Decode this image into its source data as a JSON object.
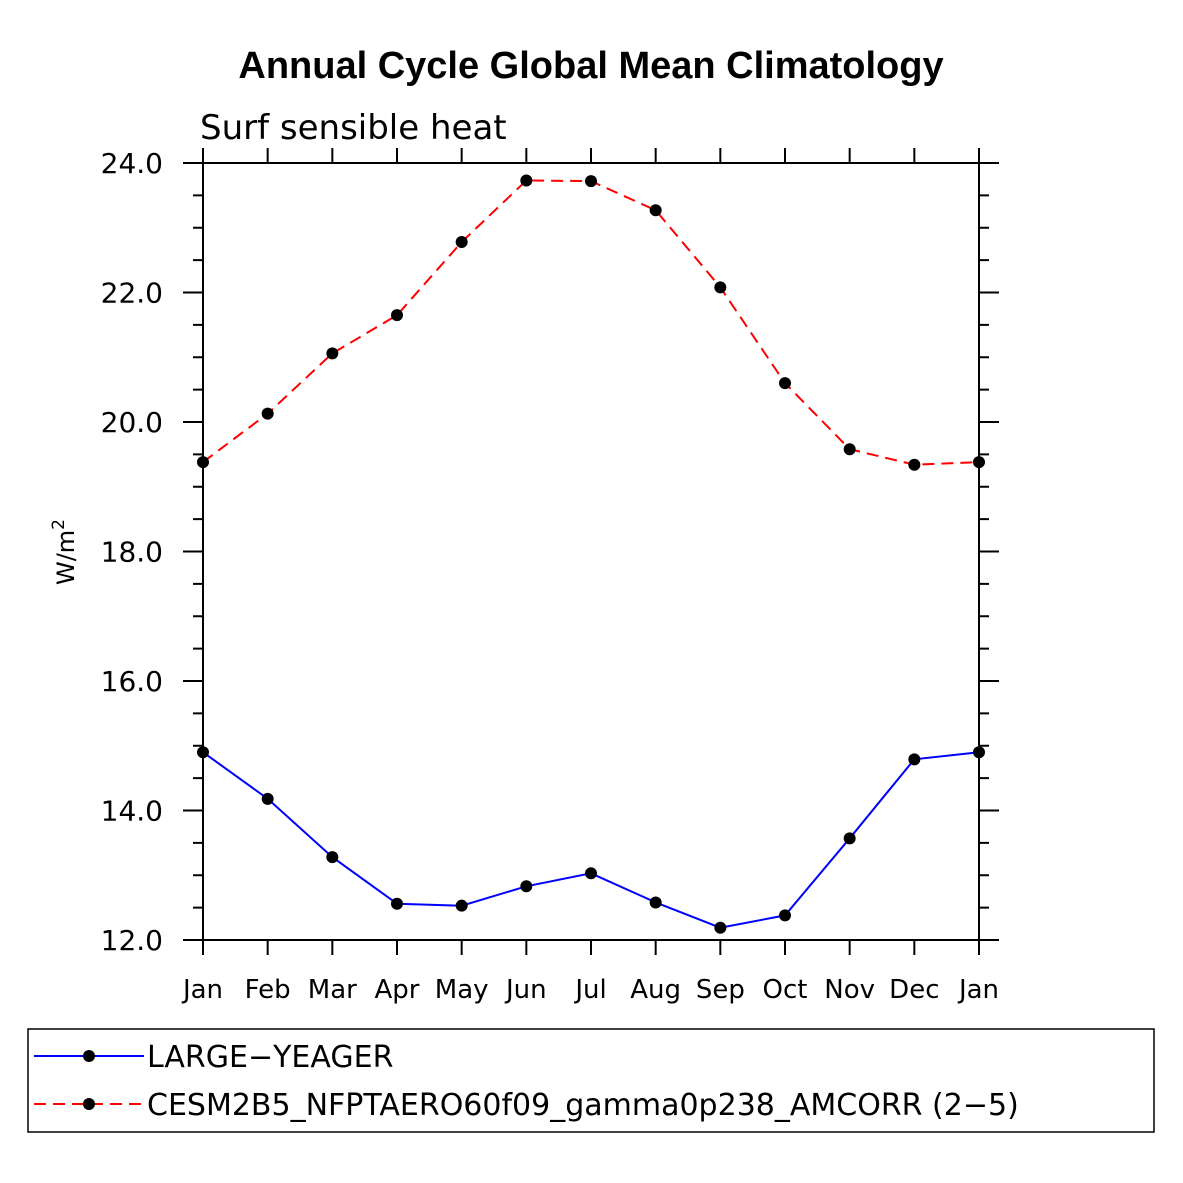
{
  "chart_data": {
    "type": "line",
    "title": "Annual Cycle Global Mean Climatology",
    "subtitle": "Surf sensible heat",
    "ylabel": "W/m",
    "ylabel_superscript": "2",
    "xlabel": "",
    "categories": [
      "Jan",
      "Feb",
      "Mar",
      "Apr",
      "May",
      "Jun",
      "Jul",
      "Aug",
      "Sep",
      "Oct",
      "Nov",
      "Dec",
      "Jan"
    ],
    "ylim": [
      12.0,
      24.0
    ],
    "yticks": [
      "12.0",
      "14.0",
      "16.0",
      "18.0",
      "20.0",
      "22.0",
      "24.0"
    ],
    "series": [
      {
        "name": "LARGE−YEAGER",
        "color": "#0000ff",
        "dash": "solid",
        "values": [
          14.9,
          14.18,
          13.28,
          12.56,
          12.53,
          12.83,
          13.03,
          12.58,
          12.19,
          12.38,
          13.57,
          14.79,
          14.9
        ]
      },
      {
        "name": "CESM2B5_NFPTAERO60f09_gamma0p238_AMCORR (2−5)",
        "color": "#ff0000",
        "dash": "dashed",
        "values": [
          19.38,
          20.13,
          21.06,
          21.65,
          22.78,
          23.73,
          23.72,
          23.27,
          22.08,
          20.6,
          19.58,
          19.34,
          19.38
        ]
      }
    ],
    "legend_position": "bottom"
  }
}
